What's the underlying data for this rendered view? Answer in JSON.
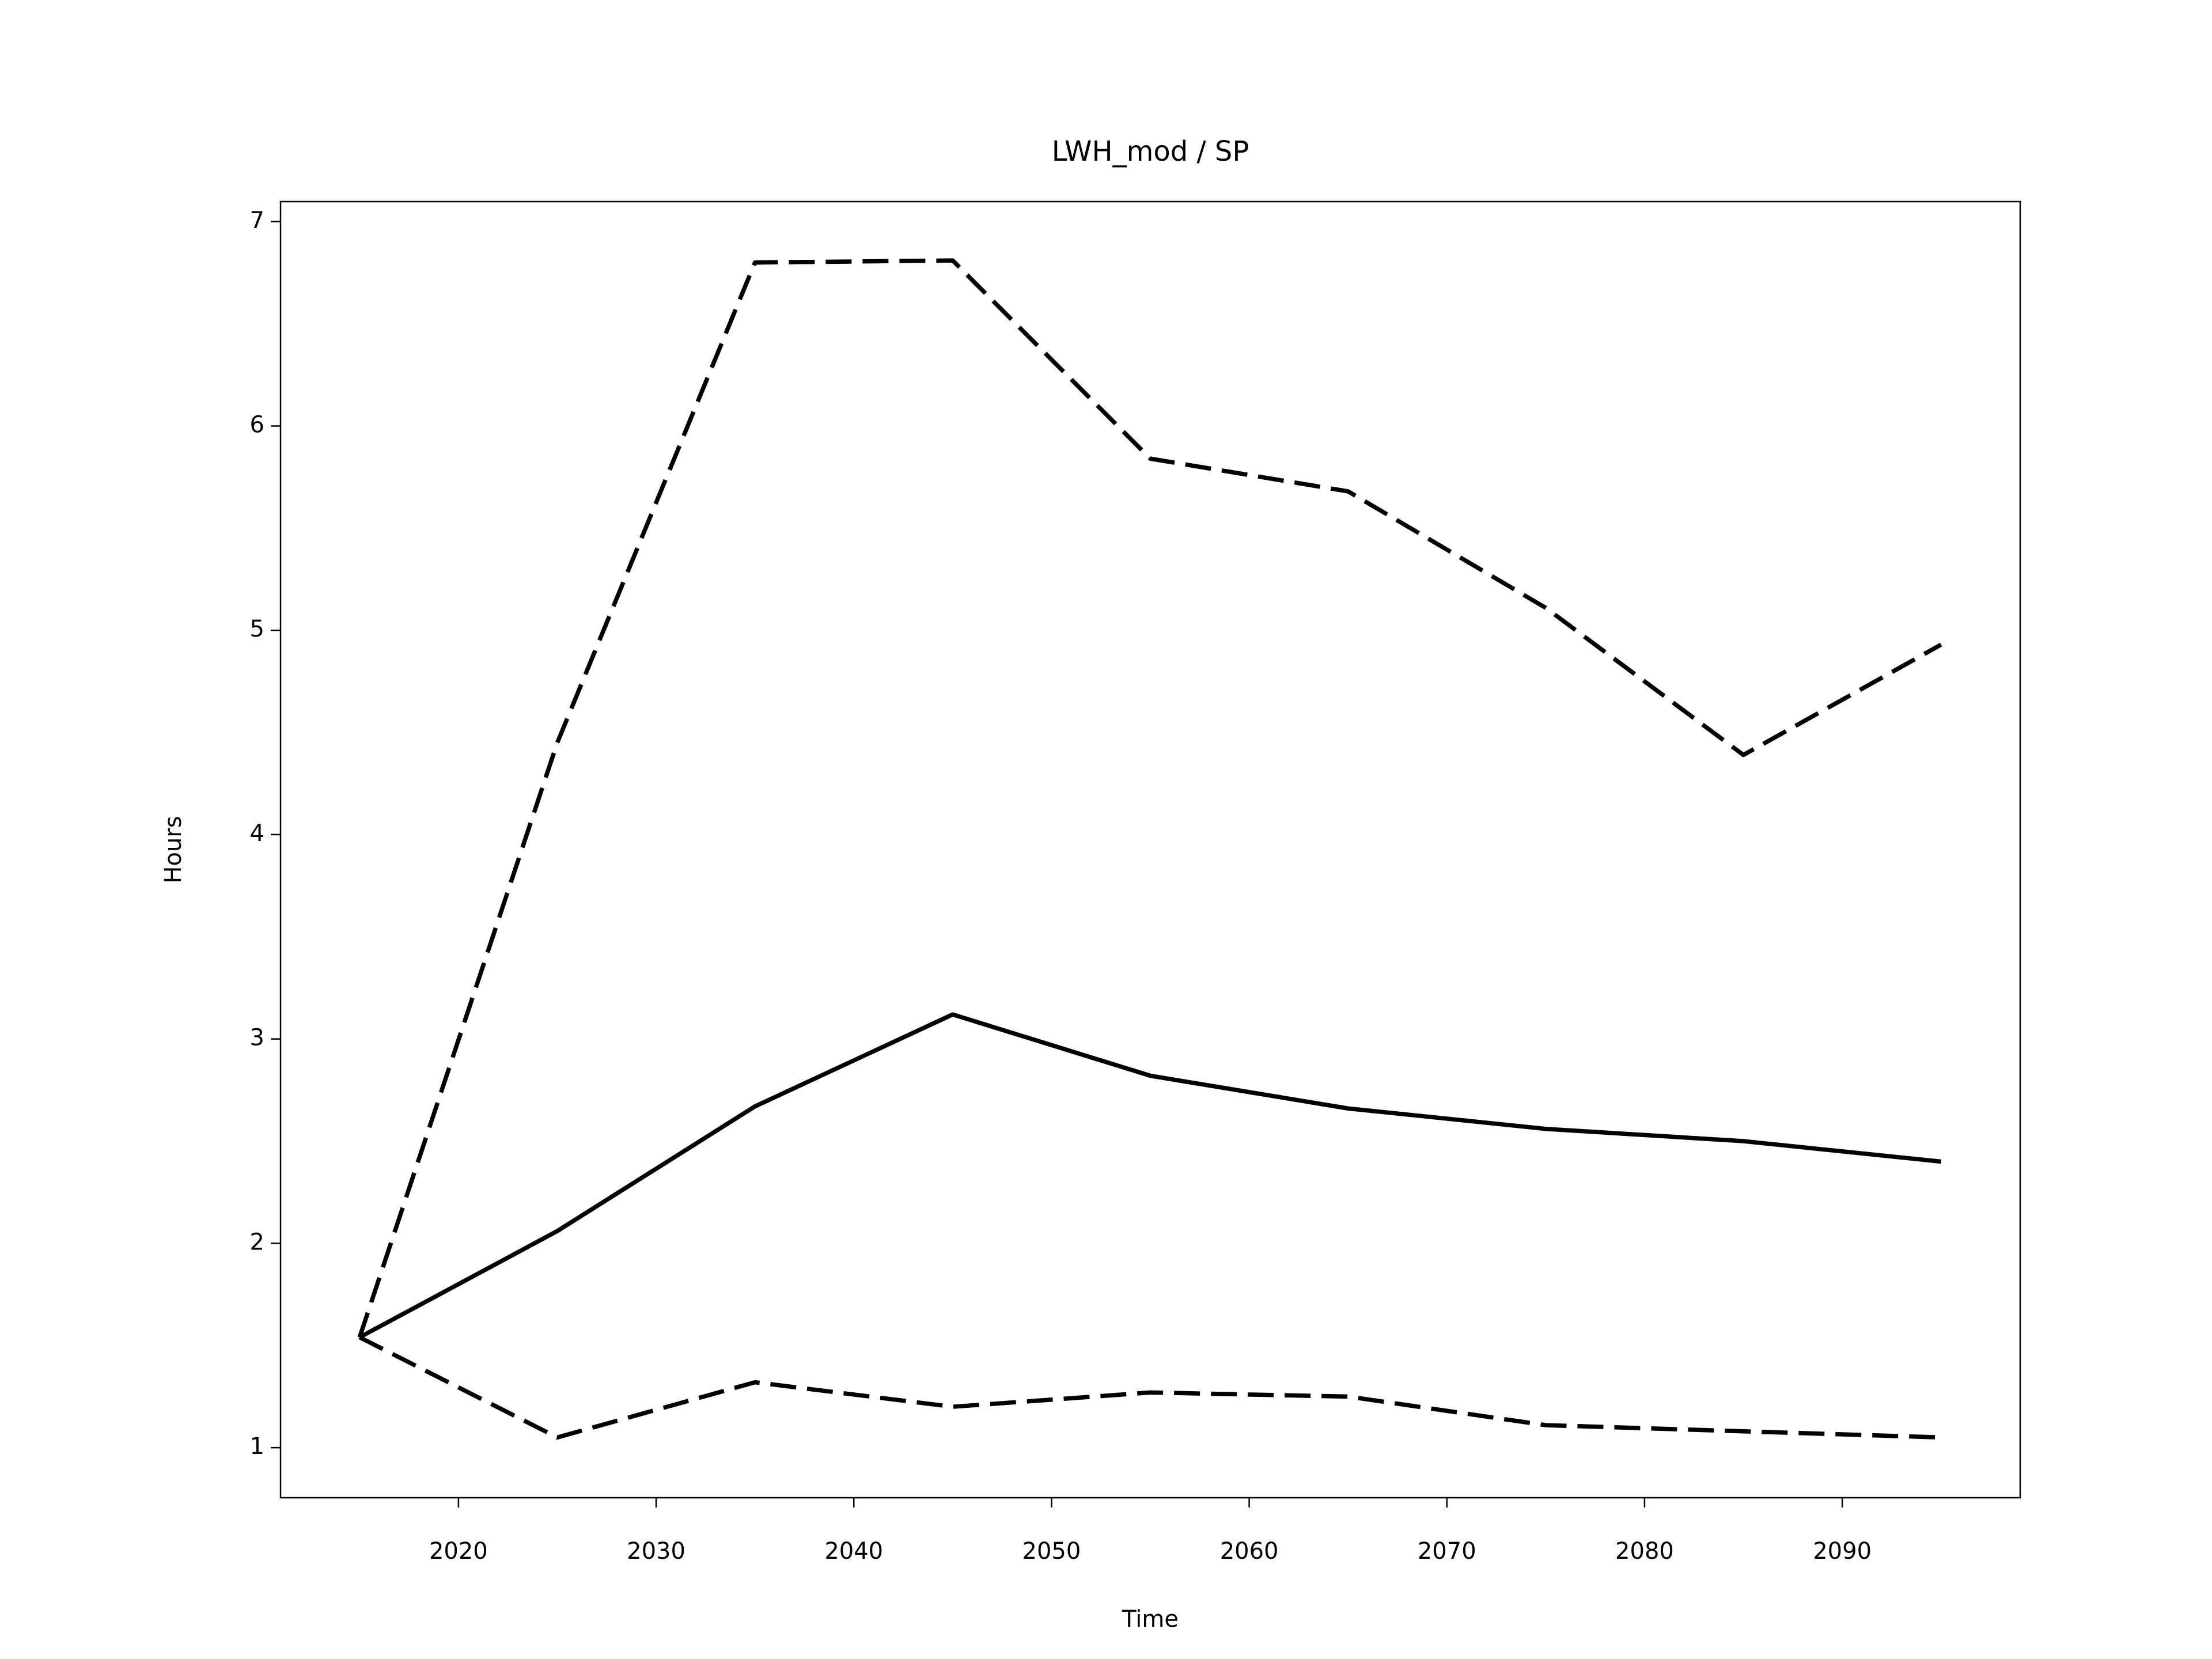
{
  "chart_data": {
    "type": "line",
    "title": "LWH_mod / SP",
    "xlabel": "Time",
    "ylabel": "Hours",
    "x": [
      2015,
      2025,
      2035,
      2045,
      2055,
      2065,
      2075,
      2085,
      2095
    ],
    "series": [
      {
        "color": "#000000",
        "linestyle": "solid",
        "values": [
          1.54,
          2.06,
          2.67,
          3.12,
          2.82,
          2.66,
          2.56,
          2.5,
          2.4
        ]
      },
      {
        "color": "#000000",
        "linestyle": "dashed",
        "values": [
          1.54,
          4.45,
          6.8,
          6.81,
          5.84,
          5.68,
          5.11,
          4.39,
          4.93
        ]
      },
      {
        "color": "#000000",
        "linestyle": "dashed",
        "values": [
          1.54,
          1.05,
          1.32,
          1.2,
          1.27,
          1.25,
          1.11,
          1.08,
          1.05
        ]
      }
    ],
    "xlim": [
      2011,
      2099
    ],
    "xticks": [
      2020,
      2030,
      2040,
      2050,
      2060,
      2070,
      2080,
      2090
    ],
    "ylim": [
      0.755,
      7.098
    ],
    "yticks": [
      1,
      2,
      3,
      4,
      5,
      6,
      7
    ],
    "grid": false
  }
}
